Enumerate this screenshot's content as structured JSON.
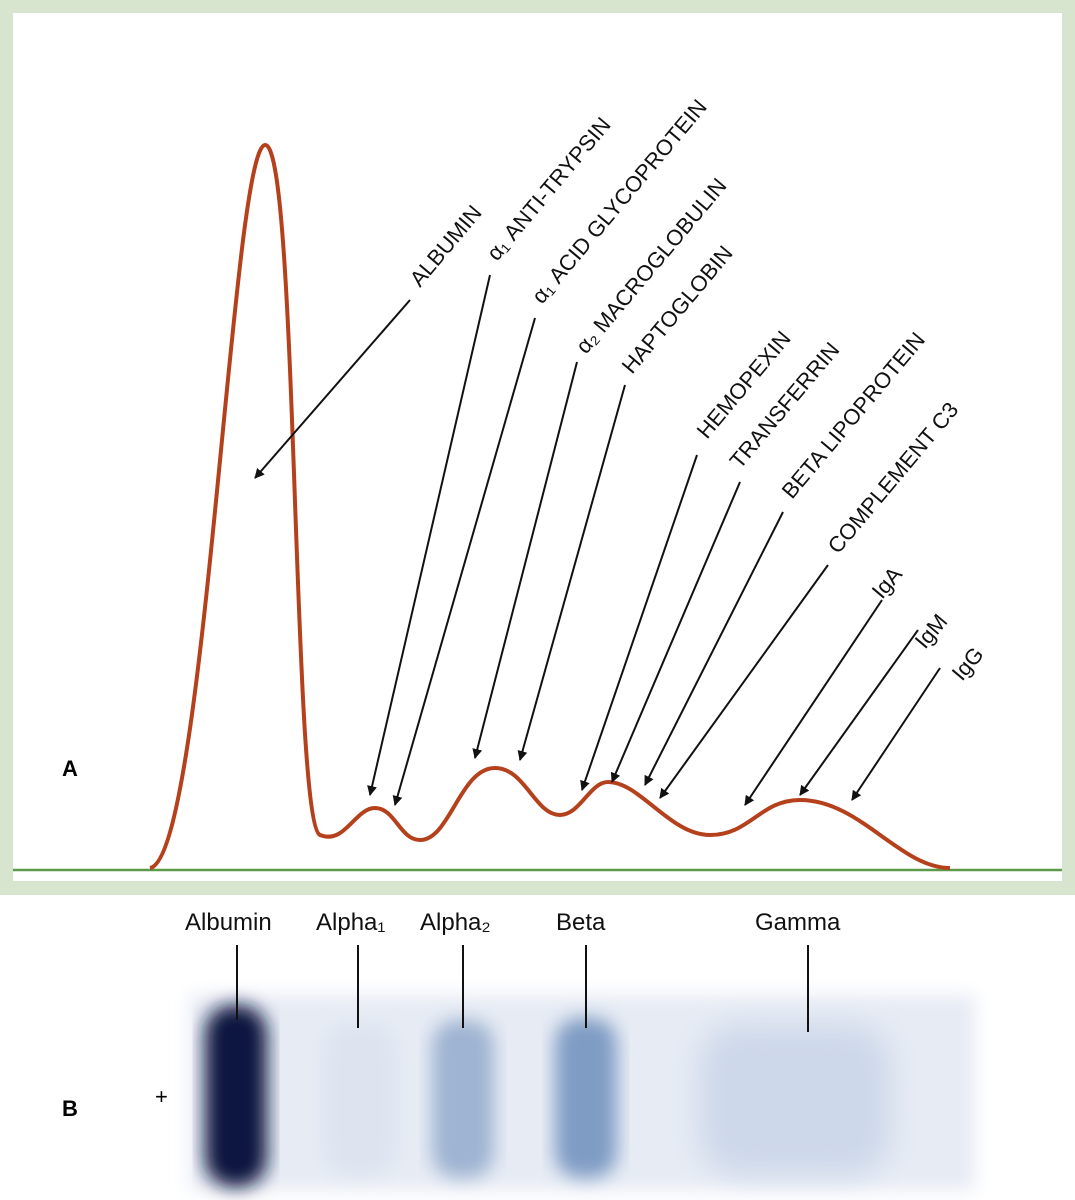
{
  "panel_a": {
    "label": "A",
    "proteins": [
      "ALBUMIN",
      "α₁ ANTI-TRYPSIN",
      "α₁ ACID GLYCOPROTEIN",
      "α₂ MACROGLOBULIN",
      "HAPTOGLOBIN",
      "HEMOPEXIN",
      "TRANSFERRIN",
      "BETA LIPOPROTEIN",
      "COMPLEMENT C3",
      "IgA",
      "IgM",
      "IgG"
    ]
  },
  "panel_b": {
    "label": "B",
    "polarity": "+",
    "fractions": [
      "Albumin",
      "Alpha₁",
      "Alpha₂",
      "Beta",
      "Gamma"
    ]
  }
}
